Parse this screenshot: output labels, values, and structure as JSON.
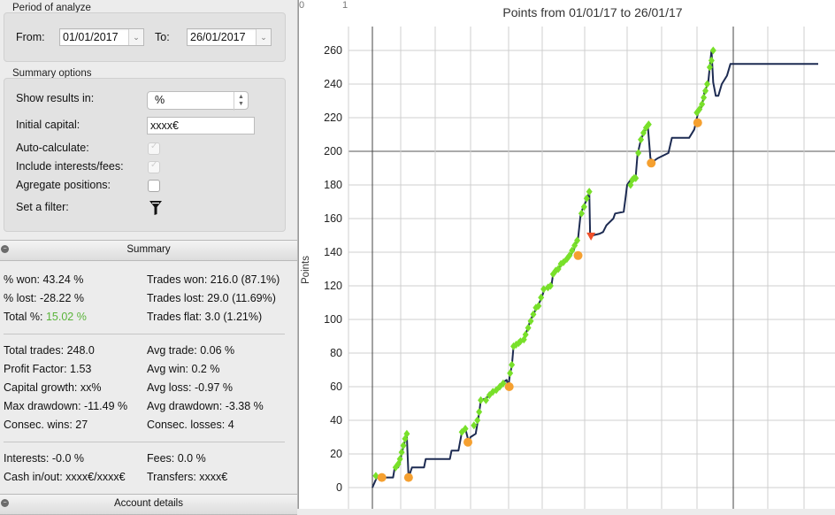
{
  "period": {
    "title": "Period of analyze",
    "from_label": "From:",
    "from_value": "01/01/2017",
    "to_label": "To:",
    "to_value": "26/01/2017"
  },
  "summary_options": {
    "title": "Summary options",
    "show_results_label": "Show results in:",
    "show_results_value": "%",
    "initial_capital_label": "Initial capital:",
    "initial_capital_value": "xxxx€",
    "auto_calculate_label": "Auto-calculate:",
    "include_fees_label": "Include interests/fees:",
    "aggregate_label": "Agregate positions:",
    "filter_label": "Set a filter:"
  },
  "summary": {
    "title": "Summary",
    "left_col1": [
      {
        "label": "% won:",
        "value": "43.24 %"
      },
      {
        "label": "% lost:",
        "value": "-28.22 %"
      },
      {
        "label": "Total %:",
        "value": "15.02 %"
      }
    ],
    "right_col1": [
      "Trades won: 216.0 (87.1%)",
      "Trades lost: 29.0 (11.69%)",
      "Trades flat: 3.0 (1.21%)"
    ],
    "left_col2": [
      "Total trades: 248.0",
      "Profit Factor: 1.53",
      "Capital growth: xx%",
      "Max drawdown: -11.49 %",
      "Consec. wins: 27"
    ],
    "right_col2": [
      "Avg trade: 0.06 %",
      "Avg win: 0.2 %",
      "Avg loss: -0.97 %",
      "Avg drawdown: -3.38 %",
      "Consec. losses: 4"
    ],
    "left_col3": [
      "Interests: -0.0 %",
      "Cash in/out: xxxx€/xxxx€"
    ],
    "right_col3": [
      "Fees: 0.0 %",
      "Transfers: xxxx€"
    ]
  },
  "account_details": {
    "title": "Account details"
  },
  "colors": {
    "line": "#1d2b52",
    "win": "#78e02a",
    "loss": "#f5a030",
    "big_loss": "#f0502a",
    "total_green": "#5ab43a"
  },
  "chart_data": {
    "type": "line",
    "title": "Points from 01/01/17 to 26/01/17",
    "xlabel": "",
    "ylabel": "Points",
    "top_tick_labels": [
      "0",
      "1"
    ],
    "ylim": [
      -10,
      270
    ],
    "yticks": [
      0,
      20,
      40,
      60,
      80,
      100,
      120,
      140,
      160,
      180,
      200,
      220,
      240,
      260
    ],
    "xlim": [
      0,
      25.9
    ],
    "grid": true,
    "series": [
      {
        "name": "",
        "points": [
          [
            0.0,
            0
          ],
          [
            0.3,
            7
          ],
          [
            0.5,
            6
          ],
          [
            1.2,
            6
          ],
          [
            1.3,
            12
          ],
          [
            1.5,
            12
          ],
          [
            1.6,
            15
          ],
          [
            1.7,
            20
          ],
          [
            1.8,
            24
          ],
          [
            1.9,
            28
          ],
          [
            2.0,
            31
          ],
          [
            2.1,
            6
          ],
          [
            2.3,
            12
          ],
          [
            3.0,
            12
          ],
          [
            3.1,
            17
          ],
          [
            4.5,
            17
          ],
          [
            4.6,
            22
          ],
          [
            5.0,
            22
          ],
          [
            5.2,
            33
          ],
          [
            5.4,
            35
          ],
          [
            5.6,
            27
          ],
          [
            5.7,
            30
          ],
          [
            6.0,
            32
          ],
          [
            6.1,
            38
          ],
          [
            6.2,
            44
          ],
          [
            6.3,
            52
          ],
          [
            6.6,
            53
          ],
          [
            6.8,
            55
          ],
          [
            7.0,
            57
          ],
          [
            7.3,
            59
          ],
          [
            7.5,
            62
          ],
          [
            7.8,
            64
          ],
          [
            7.9,
            60
          ],
          [
            8.0,
            68
          ],
          [
            8.1,
            72
          ],
          [
            8.2,
            84
          ],
          [
            8.5,
            86
          ],
          [
            8.8,
            88
          ],
          [
            9.0,
            94
          ],
          [
            9.2,
            100
          ],
          [
            9.4,
            104
          ],
          [
            9.6,
            108
          ],
          [
            9.8,
            112
          ],
          [
            10.0,
            118
          ],
          [
            10.4,
            120
          ],
          [
            10.5,
            127
          ],
          [
            10.8,
            130
          ],
          [
            11.0,
            133
          ],
          [
            11.3,
            135
          ],
          [
            11.5,
            138
          ],
          [
            11.7,
            141
          ],
          [
            11.8,
            145
          ],
          [
            11.95,
            148
          ],
          [
            12.1,
            163
          ],
          [
            12.3,
            168
          ],
          [
            12.5,
            172
          ],
          [
            12.6,
            176
          ],
          [
            12.65,
            149
          ],
          [
            12.8,
            150
          ],
          [
            13.2,
            151
          ],
          [
            13.4,
            152
          ],
          [
            13.6,
            156
          ],
          [
            14.0,
            160
          ],
          [
            14.1,
            163
          ],
          [
            14.6,
            164
          ],
          [
            14.7,
            172
          ],
          [
            14.8,
            180
          ],
          [
            15.0,
            183
          ],
          [
            15.3,
            185
          ],
          [
            15.4,
            198
          ],
          [
            15.6,
            207
          ],
          [
            15.8,
            212
          ],
          [
            16.0,
            215
          ],
          [
            16.15,
            196
          ],
          [
            16.3,
            194
          ],
          [
            16.6,
            196
          ],
          [
            17.2,
            199
          ],
          [
            17.4,
            208
          ],
          [
            18.4,
            208
          ],
          [
            18.7,
            213
          ],
          [
            18.9,
            222
          ],
          [
            19.1,
            226
          ],
          [
            19.2,
            230
          ],
          [
            19.3,
            236
          ],
          [
            19.5,
            240
          ],
          [
            19.6,
            250
          ],
          [
            19.7,
            260
          ],
          [
            19.8,
            241
          ],
          [
            19.95,
            233
          ],
          [
            20.1,
            233
          ],
          [
            20.3,
            240
          ],
          [
            20.6,
            245
          ],
          [
            20.8,
            252
          ],
          [
            21.5,
            252
          ],
          [
            23.2,
            252
          ],
          [
            24.6,
            252
          ],
          [
            25.9,
            252
          ]
        ]
      }
    ],
    "win_markers": [
      [
        0.2,
        7
      ],
      [
        1.35,
        12
      ],
      [
        1.5,
        14
      ],
      [
        1.6,
        17
      ],
      [
        1.7,
        21
      ],
      [
        1.8,
        25
      ],
      [
        1.9,
        29
      ],
      [
        2.0,
        32
      ],
      [
        5.2,
        33
      ],
      [
        5.4,
        35
      ],
      [
        5.9,
        37
      ],
      [
        6.1,
        40
      ],
      [
        6.2,
        45
      ],
      [
        6.3,
        52
      ],
      [
        6.6,
        52
      ],
      [
        6.8,
        55
      ],
      [
        7.0,
        57
      ],
      [
        7.2,
        58
      ],
      [
        7.4,
        60
      ],
      [
        7.6,
        62
      ],
      [
        8.0,
        68
      ],
      [
        8.1,
        73
      ],
      [
        8.2,
        84
      ],
      [
        8.35,
        85
      ],
      [
        8.5,
        86
      ],
      [
        8.6,
        87
      ],
      [
        8.8,
        88
      ],
      [
        8.9,
        91
      ],
      [
        9.05,
        95
      ],
      [
        9.2,
        99
      ],
      [
        9.35,
        103
      ],
      [
        9.5,
        107
      ],
      [
        9.65,
        108
      ],
      [
        9.8,
        113
      ],
      [
        9.95,
        118
      ],
      [
        10.2,
        119
      ],
      [
        10.35,
        120
      ],
      [
        10.5,
        127
      ],
      [
        10.65,
        129
      ],
      [
        10.8,
        130
      ],
      [
        10.95,
        133
      ],
      [
        11.1,
        134
      ],
      [
        11.3,
        136
      ],
      [
        11.45,
        138
      ],
      [
        11.6,
        141
      ],
      [
        11.75,
        144
      ],
      [
        11.9,
        147
      ],
      [
        12.15,
        163
      ],
      [
        12.3,
        167
      ],
      [
        12.45,
        172
      ],
      [
        12.6,
        176
      ],
      [
        15.0,
        180
      ],
      [
        15.1,
        183
      ],
      [
        15.2,
        184
      ],
      [
        15.3,
        184
      ],
      [
        15.45,
        199
      ],
      [
        15.6,
        207
      ],
      [
        15.75,
        211
      ],
      [
        15.9,
        214
      ],
      [
        16.05,
        216
      ],
      [
        18.85,
        223
      ],
      [
        19.0,
        225
      ],
      [
        19.15,
        228
      ],
      [
        19.25,
        232
      ],
      [
        19.35,
        236
      ],
      [
        19.45,
        240
      ],
      [
        19.6,
        250
      ],
      [
        19.7,
        254
      ],
      [
        19.8,
        260
      ]
    ],
    "loss_markers": [
      [
        0.55,
        6
      ],
      [
        2.1,
        6
      ],
      [
        5.55,
        27
      ],
      [
        7.95,
        60
      ],
      [
        11.95,
        138
      ],
      [
        16.2,
        193
      ],
      [
        18.9,
        217
      ]
    ],
    "big_loss_markers": [
      [
        12.7,
        149
      ]
    ]
  }
}
